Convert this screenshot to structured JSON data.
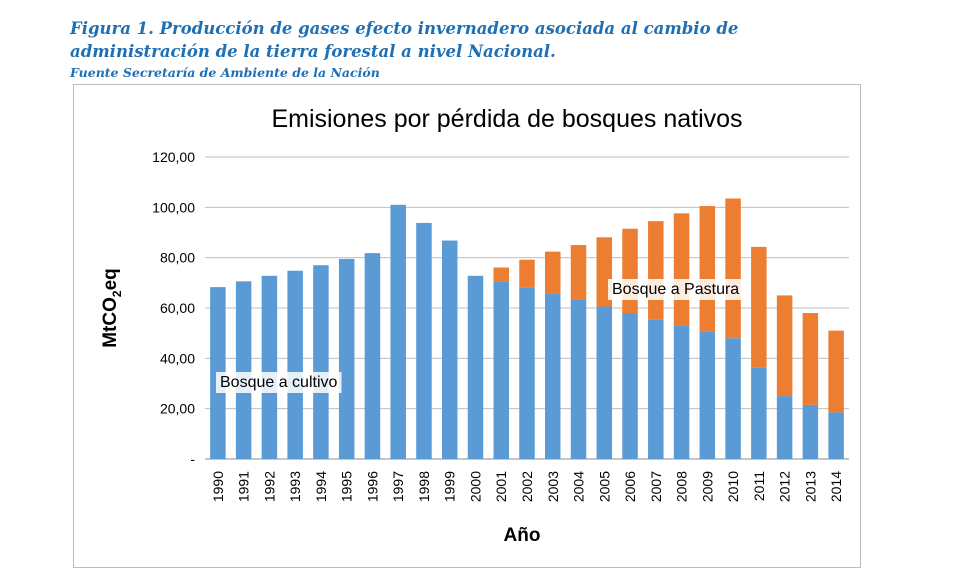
{
  "caption": {
    "line1": "Figura 1. Producción de gases efecto invernadero asociada al cambio de",
    "line2": "administración de la tierra forestal a nivel Nacional.",
    "source": "Fuente Secretaría de Ambiente de la Nación"
  },
  "colors": {
    "cultivo": "#5b9bd5",
    "pastura": "#ed7d31"
  },
  "chart_data": {
    "type": "bar",
    "stacked": true,
    "title": "Emisiones por pérdida de bosques nativos",
    "xlabel": "Año",
    "ylabel_main": "MtCO",
    "ylabel_sub": "2",
    "ylabel_tail": "eq",
    "ylim": [
      0,
      120
    ],
    "yticks": [
      "-",
      "20,00",
      "40,00",
      "60,00",
      "80,00",
      "100,00",
      "120,00"
    ],
    "grid": true,
    "categories": [
      "1990",
      "1991",
      "1992",
      "1993",
      "1994",
      "1995",
      "1996",
      "1997",
      "1998",
      "1999",
      "2000",
      "2001",
      "2002",
      "2003",
      "2004",
      "2005",
      "2006",
      "2007",
      "2008",
      "2009",
      "2010",
      "2011",
      "2012",
      "2013",
      "2014"
    ],
    "series": [
      {
        "name": "Bosque a cultivo",
        "values": [
          68.3,
          70.6,
          72.8,
          74.8,
          77.0,
          79.5,
          81.8,
          101.0,
          93.8,
          86.8,
          72.8,
          70.6,
          68.2,
          65.6,
          63.2,
          60.6,
          58.0,
          55.5,
          53.0,
          50.5,
          48.0,
          36.3,
          25.0,
          21.5,
          18.5
        ]
      },
      {
        "name": "Bosque a Pastura",
        "values": [
          0,
          0,
          0,
          0,
          0,
          0,
          0,
          0,
          0,
          0,
          0,
          5.5,
          11.0,
          16.8,
          21.8,
          27.5,
          33.5,
          39.0,
          44.6,
          50.0,
          55.5,
          48.0,
          40.0,
          36.5,
          32.5
        ]
      }
    ],
    "annotations": [
      "Bosque a cultivo",
      "Bosque a Pastura"
    ]
  }
}
